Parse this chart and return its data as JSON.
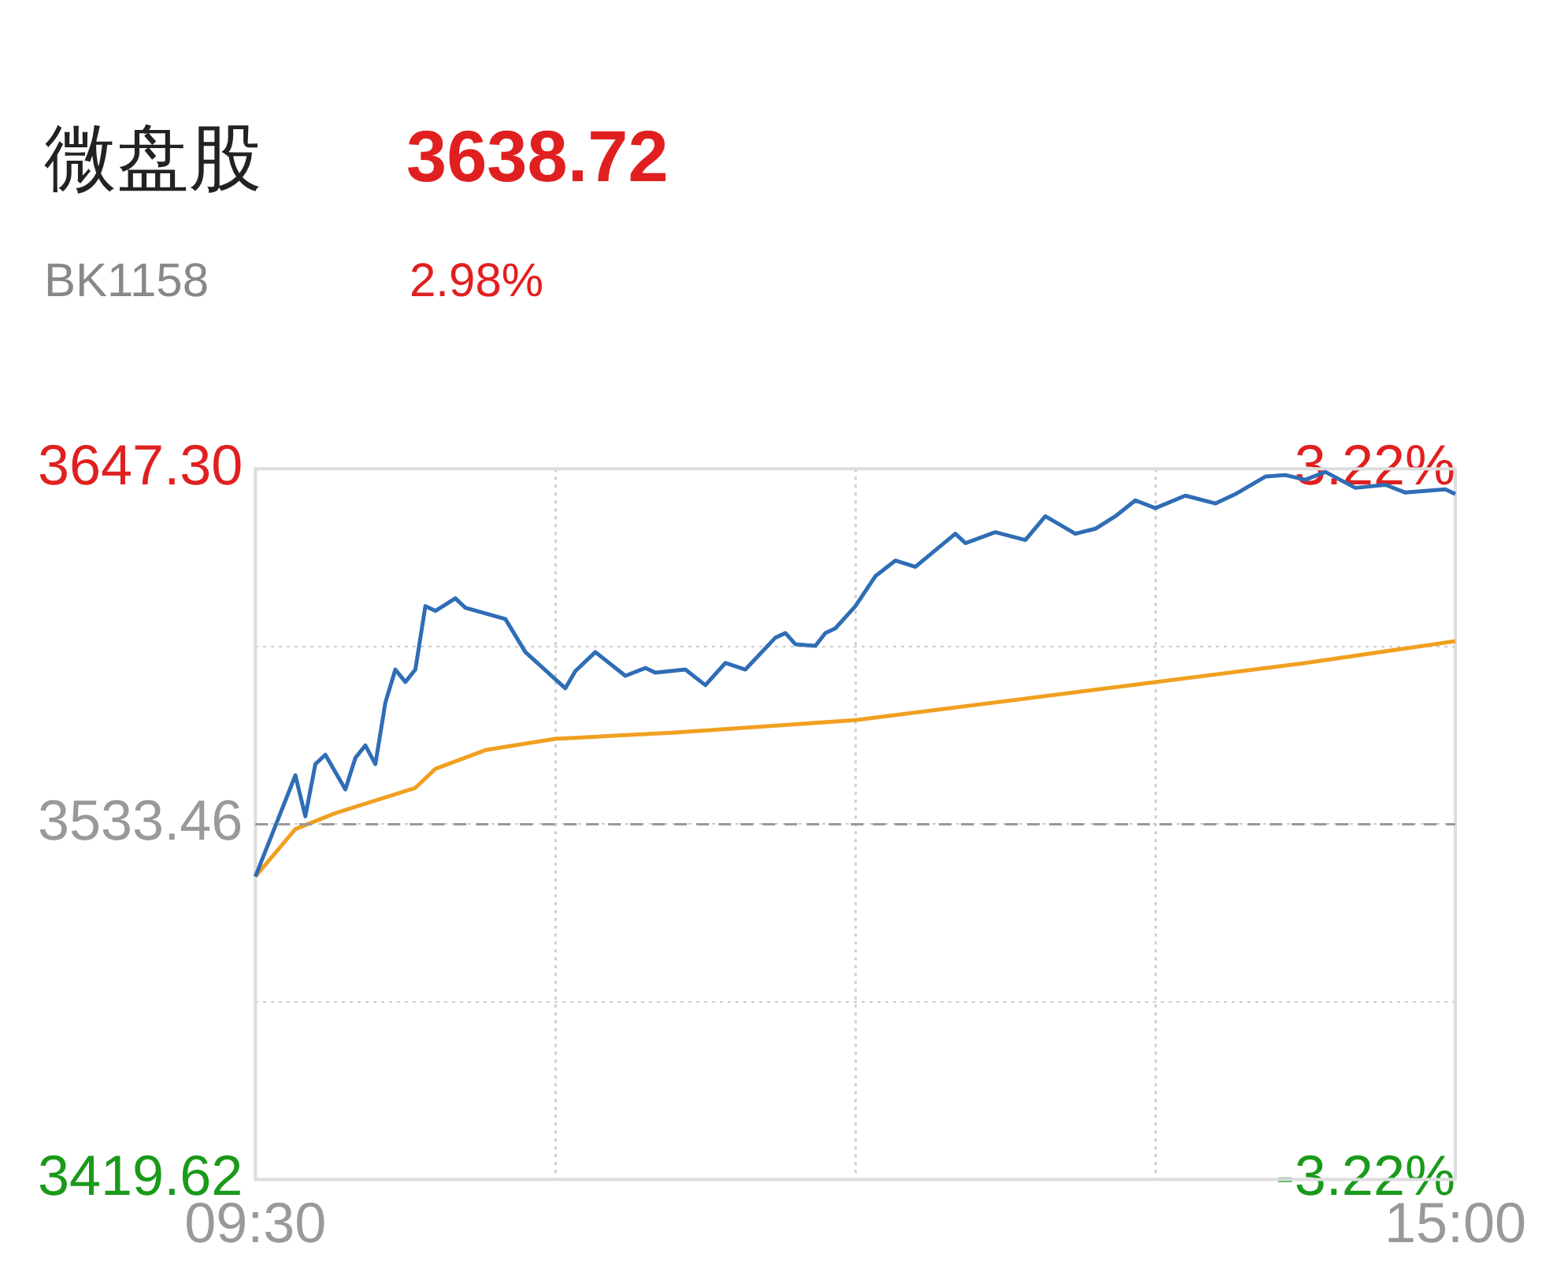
{
  "chart_data": {
    "type": "line",
    "title": "微盘股",
    "subtitle": "BK1158",
    "annotations": [
      "3638.72",
      "2.98%"
    ],
    "categories": [
      "09:30",
      null,
      null,
      null,
      null,
      null,
      null,
      null,
      null,
      null,
      null,
      null,
      null,
      null,
      null,
      null,
      null,
      null,
      null,
      null,
      null,
      null,
      null,
      null,
      null,
      null,
      null,
      null,
      null,
      null,
      null,
      null,
      null,
      null,
      null,
      null,
      null,
      null,
      null,
      null,
      null,
      null,
      null,
      null,
      null,
      null,
      null,
      null,
      null,
      null,
      null,
      null,
      null,
      null,
      null,
      null,
      null,
      null,
      null,
      null,
      null,
      null,
      null,
      null,
      null,
      null,
      null,
      null,
      null,
      null,
      null,
      null,
      null,
      null,
      null,
      null,
      null,
      null,
      null,
      null,
      null,
      null,
      null,
      null,
      null,
      null,
      null,
      null,
      null,
      null,
      null,
      null,
      null,
      null,
      null,
      null,
      null,
      null,
      null,
      null,
      null,
      null,
      null,
      null,
      null,
      null,
      null,
      null,
      null,
      null,
      null,
      null,
      null,
      null,
      null,
      null,
      null,
      null,
      null,
      null,
      "15:00"
    ],
    "ylim": [
      3419.62,
      3647.3
    ],
    "yticks": [
      {
        "value": 3647.3,
        "label": "3647.30"
      },
      {
        "value": 3590.38,
        "label": null
      },
      {
        "value": 3533.46,
        "label": "3533.46"
      },
      {
        "value": 3476.54,
        "label": null
      },
      {
        "value": 3419.62,
        "label": "3419.62"
      }
    ],
    "y2lim": [
      -3.22,
      3.22
    ],
    "y2ticks": [
      {
        "value": 3.22,
        "label": "3.22%"
      },
      {
        "value": -3.22,
        "label": "-3.22%"
      }
    ],
    "grid": true,
    "legend": false,
    "marker": "none",
    "line_style": "solid",
    "ref_lines": [
      {
        "axis": "y",
        "value": 3533.46,
        "label": null,
        "color": "#999999",
        "line_style": "dashed"
      }
    ],
    "series": [
      {
        "color": "#2f6db5",
        "values": [
          3516.7,
          null,
          null,
          null,
          3549.1,
          3536.0,
          3552.7,
          3555.7,
          null,
          3544.6,
          3554.7,
          3558.7,
          3552.7,
          3572.4,
          3583.0,
          3579.0,
          3583.0,
          3603.3,
          3601.8,
          null,
          3605.8,
          3602.8,
          null,
          null,
          null,
          3599.2,
          null,
          3588.6,
          null,
          null,
          null,
          3577.0,
          3582.5,
          null,
          3588.6,
          null,
          null,
          3581.0,
          null,
          3583.5,
          3582.0,
          null,
          null,
          3583.0,
          null,
          3578.0,
          null,
          3585.1,
          null,
          3583.0,
          null,
          null,
          3593.2,
          3594.7,
          3591.1,
          null,
          3590.6,
          3594.7,
          3596.2,
          null,
          3603.3,
          null,
          3612.9,
          null,
          3617.9,
          null,
          3615.9,
          null,
          null,
          null,
          3626.5,
          3623.5,
          null,
          null,
          3627.0,
          null,
          null,
          3624.5,
          null,
          3632.1,
          null,
          null,
          3626.5,
          null,
          3628.1,
          null,
          3632.1,
          null,
          3637.2,
          null,
          3634.7,
          null,
          null,
          3638.7,
          null,
          null,
          3636.2,
          null,
          3639.2,
          null,
          null,
          3644.8,
          null,
          3645.3,
          null,
          3643.8,
          null,
          3646.3,
          null,
          null,
          3641.2,
          null,
          null,
          3642.2,
          null,
          3639.7,
          null,
          null,
          null,
          3640.7,
          3639.2
        ]
      },
      {
        "color": "#f0a020",
        "values": [
          3516.7,
          null,
          null,
          null,
          3531.9,
          null,
          null,
          null,
          3537.0,
          null,
          null,
          null,
          null,
          null,
          null,
          null,
          3545.1,
          null,
          3551.2,
          null,
          null,
          null,
          null,
          3557.2,
          null,
          null,
          null,
          null,
          null,
          null,
          3560.8,
          null,
          null,
          null,
          null,
          null,
          null,
          null,
          null,
          null,
          null,
          null,
          3562.8,
          null,
          null,
          null,
          null,
          null,
          null,
          null,
          null,
          null,
          null,
          null,
          null,
          null,
          null,
          null,
          null,
          null,
          3566.8,
          null,
          null,
          null,
          null,
          null,
          null,
          null,
          null,
          null,
          null,
          null,
          null,
          null,
          null,
          null,
          null,
          null,
          null,
          null,
          null,
          null,
          null,
          null,
          null,
          null,
          null,
          null,
          null,
          null,
          3579.0,
          null,
          null,
          null,
          null,
          null,
          null,
          null,
          null,
          null,
          null,
          null,
          null,
          null,
          null,
          3585.1,
          null,
          null,
          null,
          null,
          null,
          null,
          null,
          null,
          null,
          null,
          null,
          null,
          null,
          null,
          3592.1
        ]
      }
    ]
  }
}
